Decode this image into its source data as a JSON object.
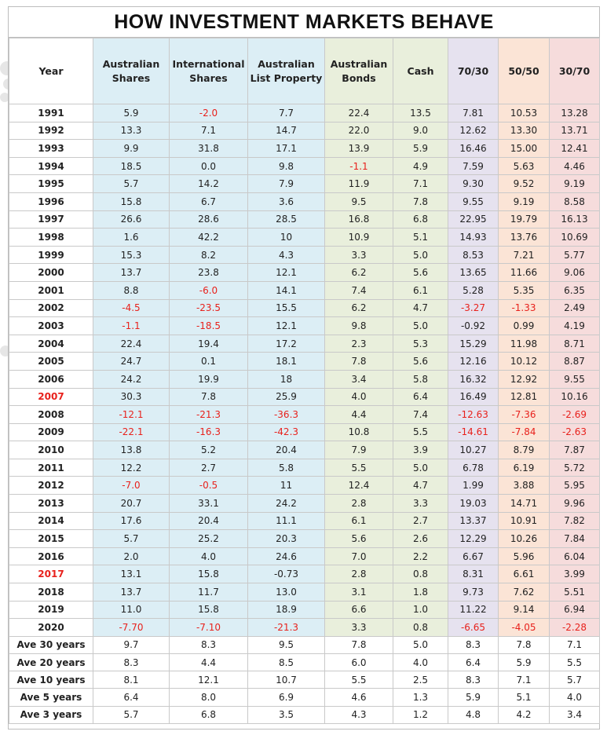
{
  "title": "HOW INVESTMENT MARKETS BEHAVE",
  "colors": {
    "shares_bg": "#dceef5",
    "bonds_cash_bg": "#e9efdc",
    "mix_70_30_bg": "#e6e2ef",
    "mix_50_50_bg": "#fbe4d6",
    "mix_30_70_bg": "#f6dcdc",
    "negative_text": "#e8211c"
  },
  "chart_data": {
    "type": "table",
    "title": "HOW INVESTMENT MARKETS BEHAVE",
    "columns": [
      "Year",
      "Australian Shares",
      "International Shares",
      "Australian List Property",
      "Australian Bonds",
      "Cash",
      "70/30",
      "50/50",
      "30/70"
    ],
    "rows": [
      [
        "1991",
        "5.9",
        "-2.0",
        "7.7",
        "22.4",
        "13.5",
        "7.81",
        "10.53",
        "13.28"
      ],
      [
        "1992",
        "13.3",
        "7.1",
        "14.7",
        "22.0",
        "9.0",
        "12.62",
        "13.30",
        "13.71"
      ],
      [
        "1993",
        "9.9",
        "31.8",
        "17.1",
        "13.9",
        "5.9",
        "16.46",
        "15.00",
        "12.41"
      ],
      [
        "1994",
        "18.5",
        "0.0",
        "9.8",
        "-1.1",
        "4.9",
        "7.59",
        "5.63",
        "4.46"
      ],
      [
        "1995",
        "5.7",
        "14.2",
        "7.9",
        "11.9",
        "7.1",
        "9.30",
        "9.52",
        "9.19"
      ],
      [
        "1996",
        "15.8",
        "6.7",
        "3.6",
        "9.5",
        "7.8",
        "9.55",
        "9.19",
        "8.58"
      ],
      [
        "1997",
        "26.6",
        "28.6",
        "28.5",
        "16.8",
        "6.8",
        "22.95",
        "19.79",
        "16.13"
      ],
      [
        "1998",
        "1.6",
        "42.2",
        "10",
        "10.9",
        "5.1",
        "14.93",
        "13.76",
        "10.69"
      ],
      [
        "1999",
        "15.3",
        "8.2",
        "4.3",
        "3.3",
        "5.0",
        "8.53",
        "7.21",
        "5.77"
      ],
      [
        "2000",
        "13.7",
        "23.8",
        "12.1",
        "6.2",
        "5.6",
        "13.65",
        "11.66",
        "9.06"
      ],
      [
        "2001",
        "8.8",
        "-6.0",
        "14.1",
        "7.4",
        "6.1",
        "5.28",
        "5.35",
        "6.35"
      ],
      [
        "2002",
        "-4.5",
        "-23.5",
        "15.5",
        "6.2",
        "4.7",
        "-3.27",
        "-1.33",
        "2.49"
      ],
      [
        "2003",
        "-1.1",
        "-18.5",
        "12.1",
        "9.8",
        "5.0",
        "-0.92",
        "0.99",
        "4.19"
      ],
      [
        "2004",
        "22.4",
        "19.4",
        "17.2",
        "2.3",
        "5.3",
        "15.29",
        "11.98",
        "8.71"
      ],
      [
        "2005",
        "24.7",
        "0.1",
        "18.1",
        "7.8",
        "5.6",
        "12.16",
        "10.12",
        "8.87"
      ],
      [
        "2006",
        "24.2",
        "19.9",
        "18",
        "3.4",
        "5.8",
        "16.32",
        "12.92",
        "9.55"
      ],
      [
        "2007",
        "30.3",
        "7.8",
        "25.9",
        "4.0",
        "6.4",
        "16.49",
        "12.81",
        "10.16"
      ],
      [
        "2008",
        "-12.1",
        "-21.3",
        "-36.3",
        "4.4",
        "7.4",
        "-12.63",
        "-7.36",
        "-2.69"
      ],
      [
        "2009",
        "-22.1",
        "-16.3",
        "-42.3",
        "10.8",
        "5.5",
        "-14.61",
        "-7.84",
        "-2.63"
      ],
      [
        "2010",
        "13.8",
        "5.2",
        "20.4",
        "7.9",
        "3.9",
        "10.27",
        "8.79",
        "7.87"
      ],
      [
        "2011",
        "12.2",
        "2.7",
        "5.8",
        "5.5",
        "5.0",
        "6.78",
        "6.19",
        "5.72"
      ],
      [
        "2012",
        "-7.0",
        "-0.5",
        "11",
        "12.4",
        "4.7",
        "1.99",
        "3.88",
        "5.95"
      ],
      [
        "2013",
        "20.7",
        "33.1",
        "24.2",
        "2.8",
        "3.3",
        "19.03",
        "14.71",
        "9.96"
      ],
      [
        "2014",
        "17.6",
        "20.4",
        "11.1",
        "6.1",
        "2.7",
        "13.37",
        "10.91",
        "7.82"
      ],
      [
        "2015",
        "5.7",
        "25.2",
        "20.3",
        "5.6",
        "2.6",
        "12.29",
        "10.26",
        "7.84"
      ],
      [
        "2016",
        "2.0",
        "4.0",
        "24.6",
        "7.0",
        "2.2",
        "6.67",
        "5.96",
        "6.04"
      ],
      [
        "2017",
        "13.1",
        "15.8",
        "-0.73",
        "2.8",
        "0.8",
        "8.31",
        "6.61",
        "3.99"
      ],
      [
        "2018",
        "13.7",
        "11.7",
        "13.0",
        "3.1",
        "1.8",
        "9.73",
        "7.62",
        "5.51"
      ],
      [
        "2019",
        "11.0",
        "15.8",
        "18.9",
        "6.6",
        "1.0",
        "11.22",
        "9.14",
        "6.94"
      ],
      [
        "2020",
        "-7.70",
        "-7.10",
        "-21.3",
        "3.3",
        "0.8",
        "-6.65",
        "-4.05",
        "-2.28"
      ]
    ],
    "averages": [
      [
        "Ave 30 years",
        "9.7",
        "8.3",
        "9.5",
        "7.8",
        "5.0",
        "8.3",
        "7.8",
        "7.1"
      ],
      [
        "Ave 20 years",
        "8.3",
        "4.4",
        "8.5",
        "6.0",
        "4.0",
        "6.4",
        "5.9",
        "5.5"
      ],
      [
        "Ave 10 years",
        "8.1",
        "12.1",
        "10.7",
        "5.5",
        "2.5",
        "8.3",
        "7.1",
        "5.7"
      ],
      [
        "Ave 5 years",
        "6.4",
        "8.0",
        "6.9",
        "4.6",
        "1.3",
        "5.9",
        "5.1",
        "4.0"
      ],
      [
        "Ave 3 years",
        "5.7",
        "6.8",
        "3.5",
        "4.3",
        "1.2",
        "4.8",
        "4.2",
        "3.4"
      ]
    ],
    "negative_cells": [
      [
        0,
        2
      ],
      [
        3,
        4
      ],
      [
        10,
        2
      ],
      [
        11,
        1
      ],
      [
        11,
        2
      ],
      [
        11,
        6
      ],
      [
        11,
        7
      ],
      [
        12,
        1
      ],
      [
        12,
        2
      ],
      [
        16,
        0
      ],
      [
        17,
        1
      ],
      [
        17,
        2
      ],
      [
        17,
        3
      ],
      [
        17,
        6
      ],
      [
        17,
        7
      ],
      [
        17,
        8
      ],
      [
        18,
        1
      ],
      [
        18,
        2
      ],
      [
        18,
        3
      ],
      [
        18,
        6
      ],
      [
        18,
        7
      ],
      [
        18,
        8
      ],
      [
        21,
        1
      ],
      [
        21,
        2
      ],
      [
        26,
        0
      ],
      [
        29,
        1
      ],
      [
        29,
        2
      ],
      [
        29,
        3
      ],
      [
        29,
        6
      ],
      [
        29,
        7
      ],
      [
        29,
        8
      ]
    ]
  }
}
